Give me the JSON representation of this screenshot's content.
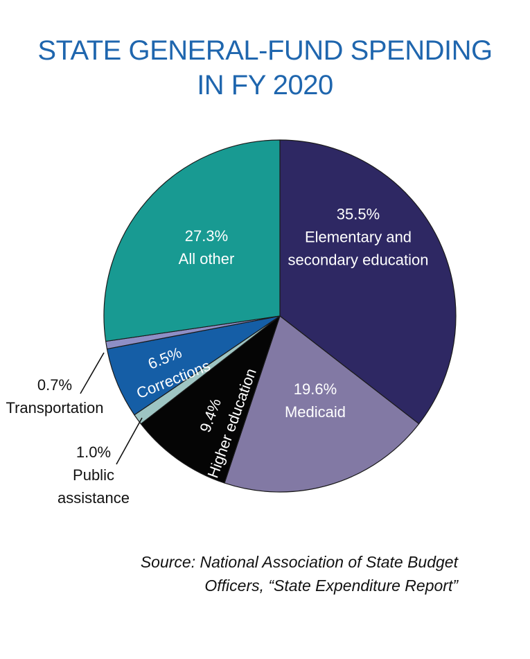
{
  "chart_data": {
    "type": "pie",
    "title": [
      "STATE GENERAL-FUND SPENDING",
      "IN FY 2020"
    ],
    "start_angle_deg": 0,
    "direction": "clockwise",
    "slices": [
      {
        "label": "Elementary and secondary education",
        "label_lines": [
          "Elementary and",
          "secondary education"
        ],
        "value": 35.5,
        "value_label": "35.5%",
        "color": "#2e2863",
        "text_color": "#ffffff",
        "label_placement": "inside"
      },
      {
        "label": "Medicaid",
        "label_lines": [
          "Medicaid"
        ],
        "value": 19.6,
        "value_label": "19.6%",
        "color": "#8279a4",
        "text_color": "#ffffff",
        "label_placement": "inside"
      },
      {
        "label": "Higher education",
        "label_lines": [
          "Higher education"
        ],
        "value": 9.4,
        "value_label": "9.4%",
        "color": "#050505",
        "text_color": "#ffffff",
        "label_placement": "inside-rotated"
      },
      {
        "label": "Public assistance",
        "label_lines": [
          "Public",
          "assistance"
        ],
        "value": 1.0,
        "value_label": "1.0%",
        "color": "#9ec5c3",
        "text_color": "#111111",
        "label_placement": "outside"
      },
      {
        "label": "Corrections",
        "label_lines": [
          "Corrections"
        ],
        "value": 6.5,
        "value_label": "6.5%",
        "color": "#155ea6",
        "text_color": "#ffffff",
        "label_placement": "inside-rotated"
      },
      {
        "label": "Transportation",
        "label_lines": [
          "Transportation"
        ],
        "value": 0.7,
        "value_label": "0.7%",
        "color": "#8e8fc6",
        "text_color": "#111111",
        "label_placement": "outside"
      },
      {
        "label": "All other",
        "label_lines": [
          "All other"
        ],
        "value": 27.3,
        "value_label": "27.3%",
        "color": "#189a92",
        "text_color": "#ffffff",
        "label_placement": "inside"
      }
    ],
    "slice_border_color": "#1a1a1a"
  },
  "source": {
    "lines": [
      "Source: National Association of State Budget",
      "Officers, “State Expenditure Report”"
    ]
  }
}
